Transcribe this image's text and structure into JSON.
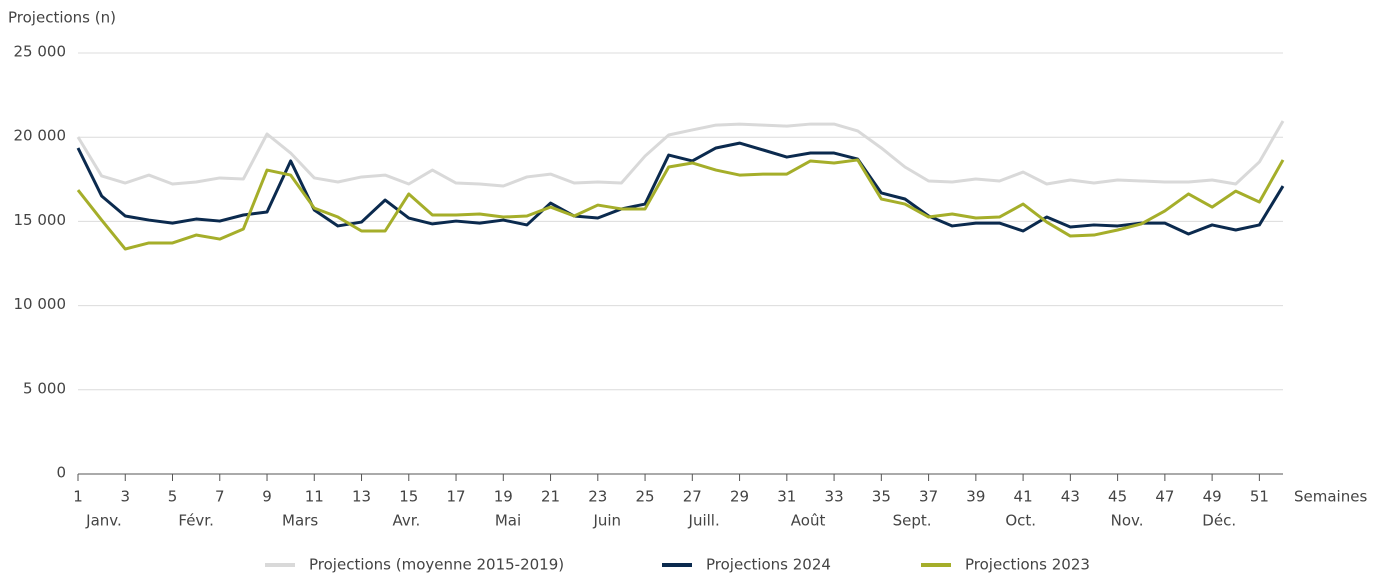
{
  "chart_data": {
    "type": "line",
    "y_label": "Projections (n)",
    "x_label": "Semaines",
    "x": [
      1,
      2,
      3,
      4,
      5,
      6,
      7,
      8,
      9,
      10,
      11,
      12,
      13,
      14,
      15,
      16,
      17,
      18,
      19,
      20,
      21,
      22,
      23,
      24,
      25,
      26,
      27,
      28,
      29,
      30,
      31,
      32,
      33,
      34,
      35,
      36,
      37,
      38,
      39,
      40,
      41,
      42,
      43,
      44,
      45,
      46,
      47,
      48,
      49,
      50,
      51,
      52
    ],
    "xlim": [
      1,
      52
    ],
    "xticks": [
      1,
      3,
      5,
      7,
      9,
      11,
      13,
      15,
      17,
      19,
      21,
      23,
      25,
      27,
      29,
      31,
      33,
      35,
      37,
      39,
      41,
      43,
      45,
      47,
      49,
      51
    ],
    "month_ticks": [
      {
        "value": 2.1,
        "label": "Janv."
      },
      {
        "value": 6,
        "label": "Févr."
      },
      {
        "value": 10.4,
        "label": "Mars"
      },
      {
        "value": 14.9,
        "label": "Avr."
      },
      {
        "value": 19.2,
        "label": "Mai"
      },
      {
        "value": 23.4,
        "label": "Juin"
      },
      {
        "value": 27.5,
        "label": "Juill."
      },
      {
        "value": 31.9,
        "label": "Août"
      },
      {
        "value": 36.3,
        "label": "Sept."
      },
      {
        "value": 40.9,
        "label": "Oct."
      },
      {
        "value": 45.4,
        "label": "Nov."
      },
      {
        "value": 49.3,
        "label": "Déc."
      }
    ],
    "ylim": [
      0,
      25000
    ],
    "yticks": [
      0,
      {
        "value": 5000,
        "label": "5 000"
      },
      {
        "value": 10000,
        "label": "10 000"
      },
      {
        "value": 15000,
        "label": "15 000"
      },
      {
        "value": 20000,
        "label": "20 000"
      },
      {
        "value": 25000,
        "label": "25 000"
      }
    ],
    "grid": true,
    "legend": "bottom",
    "series": [
      {
        "name": "Projections (moyenne 2015-2019)",
        "color": "#d9d9d9",
        "values": [
          20010,
          17700,
          17280,
          17750,
          17220,
          17340,
          17580,
          17520,
          20190,
          19060,
          17580,
          17340,
          17640,
          17750,
          17220,
          18050,
          17280,
          17220,
          17100,
          17640,
          17810,
          17280,
          17340,
          17280,
          18880,
          20130,
          20430,
          20720,
          20780,
          20720,
          20660,
          20780,
          20780,
          20370,
          19360,
          18230,
          17400,
          17340,
          17520,
          17400,
          17930,
          17220,
          17460,
          17280,
          17460,
          17400,
          17340,
          17340,
          17460,
          17220,
          18530,
          20960
        ]
      },
      {
        "name": "Projections 2024",
        "color": "#0b2a4e",
        "values": [
          19360,
          16510,
          15320,
          15080,
          14900,
          15140,
          15020,
          15380,
          15560,
          18590,
          15680,
          14730,
          14960,
          16270,
          15200,
          14850,
          15020,
          14900,
          15080,
          14790,
          16090,
          15320,
          15200,
          15740,
          16030,
          18940,
          18590,
          19360,
          19650,
          19240,
          18820,
          19060,
          19060,
          18700,
          16690,
          16330,
          15320,
          14730,
          14900,
          14900,
          14430,
          15260,
          14670,
          14790,
          14730,
          14900,
          14900,
          14250,
          14790,
          14490,
          14790,
          17100
        ]
      },
      {
        "name": "Projections 2023",
        "color": "#a5ae2a",
        "values": [
          16860,
          15080,
          13360,
          13720,
          13720,
          14190,
          13950,
          14550,
          18050,
          17750,
          15790,
          15260,
          14430,
          14430,
          16630,
          15380,
          15380,
          15440,
          15260,
          15320,
          15850,
          15320,
          15970,
          15740,
          15740,
          18230,
          18470,
          18050,
          17750,
          17810,
          17810,
          18590,
          18470,
          18650,
          16330,
          16030,
          15260,
          15440,
          15200,
          15260,
          16030,
          14960,
          14130,
          14190,
          14490,
          14850,
          15620,
          16630,
          15850,
          16800,
          16150,
          18650
        ]
      }
    ]
  }
}
